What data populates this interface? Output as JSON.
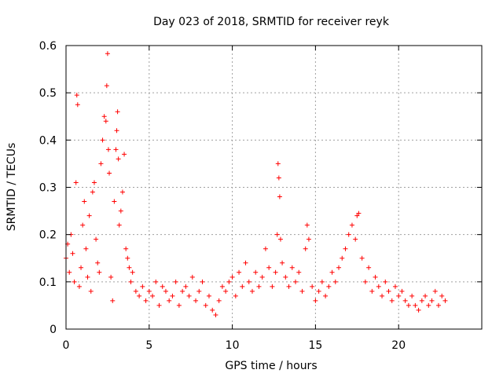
{
  "chart_data": {
    "type": "scatter",
    "title": "Day 023 of 2018, SRMTID for receiver reyk",
    "xlabel": "GPS time / hours",
    "ylabel": "SRMTID / TECUs",
    "xlim": [
      0,
      25
    ],
    "ylim": [
      0,
      0.6
    ],
    "xticks": [
      0,
      5,
      10,
      15,
      20
    ],
    "xtick_labels": [
      "0",
      "5",
      "10",
      "15",
      "20"
    ],
    "yticks": [
      0,
      0.1,
      0.2,
      0.3,
      0.4,
      0.5,
      0.6
    ],
    "ytick_labels": [
      "0",
      "0.1",
      "0.2",
      "0.3",
      "0.4",
      "0.5",
      "0.6"
    ],
    "grid": true,
    "marker": "+",
    "color": "#ff0000",
    "series": [
      {
        "name": "SRMTID",
        "x": [
          0.0,
          0.1,
          0.2,
          0.3,
          0.4,
          0.5,
          0.6,
          0.65,
          0.7,
          0.8,
          0.9,
          1.0,
          1.1,
          1.2,
          1.3,
          1.4,
          1.5,
          1.6,
          1.7,
          1.8,
          1.9,
          2.0,
          2.1,
          2.2,
          2.3,
          2.4,
          2.45,
          2.5,
          2.55,
          2.6,
          2.7,
          2.8,
          2.9,
          3.0,
          3.05,
          3.1,
          3.15,
          3.2,
          3.3,
          3.4,
          3.5,
          3.6,
          3.7,
          3.8,
          3.9,
          4.0,
          4.2,
          4.4,
          4.6,
          4.8,
          5.0,
          5.2,
          5.4,
          5.6,
          5.8,
          6.0,
          6.2,
          6.4,
          6.6,
          6.8,
          7.0,
          7.2,
          7.4,
          7.6,
          7.8,
          8.0,
          8.2,
          8.4,
          8.6,
          8.8,
          9.0,
          9.2,
          9.4,
          9.6,
          9.8,
          10.0,
          10.2,
          10.4,
          10.6,
          10.8,
          11.0,
          11.2,
          11.4,
          11.6,
          11.8,
          12.0,
          12.2,
          12.4,
          12.6,
          12.7,
          12.75,
          12.8,
          12.85,
          12.9,
          13.0,
          13.2,
          13.4,
          13.6,
          13.8,
          14.0,
          14.2,
          14.4,
          14.5,
          14.6,
          14.8,
          15.0,
          15.2,
          15.4,
          15.6,
          15.8,
          16.0,
          16.2,
          16.4,
          16.6,
          16.8,
          17.0,
          17.2,
          17.4,
          17.5,
          17.6,
          17.8,
          18.0,
          18.2,
          18.4,
          18.6,
          18.8,
          19.0,
          19.2,
          19.4,
          19.6,
          19.8,
          20.0,
          20.2,
          20.4,
          20.6,
          20.8,
          21.0,
          21.2,
          21.4,
          21.6,
          21.8,
          22.0,
          22.2,
          22.4,
          22.6,
          22.8
        ],
        "y": [
          0.15,
          0.18,
          0.12,
          0.2,
          0.16,
          0.1,
          0.31,
          0.495,
          0.475,
          0.09,
          0.13,
          0.22,
          0.27,
          0.17,
          0.11,
          0.24,
          0.08,
          0.29,
          0.31,
          0.19,
          0.14,
          0.12,
          0.35,
          0.4,
          0.45,
          0.44,
          0.515,
          0.583,
          0.38,
          0.33,
          0.11,
          0.06,
          0.27,
          0.38,
          0.42,
          0.46,
          0.36,
          0.22,
          0.25,
          0.29,
          0.37,
          0.17,
          0.15,
          0.13,
          0.1,
          0.12,
          0.08,
          0.07,
          0.09,
          0.06,
          0.08,
          0.07,
          0.1,
          0.05,
          0.09,
          0.08,
          0.06,
          0.07,
          0.1,
          0.05,
          0.08,
          0.09,
          0.07,
          0.11,
          0.06,
          0.08,
          0.1,
          0.05,
          0.07,
          0.04,
          0.03,
          0.06,
          0.09,
          0.08,
          0.1,
          0.11,
          0.07,
          0.12,
          0.09,
          0.14,
          0.1,
          0.08,
          0.12,
          0.09,
          0.11,
          0.17,
          0.13,
          0.09,
          0.12,
          0.2,
          0.35,
          0.32,
          0.28,
          0.19,
          0.14,
          0.11,
          0.09,
          0.13,
          0.1,
          0.12,
          0.08,
          0.17,
          0.22,
          0.19,
          0.09,
          0.06,
          0.08,
          0.1,
          0.07,
          0.09,
          0.12,
          0.1,
          0.13,
          0.15,
          0.17,
          0.2,
          0.22,
          0.19,
          0.24,
          0.245,
          0.15,
          0.1,
          0.13,
          0.08,
          0.11,
          0.09,
          0.07,
          0.1,
          0.08,
          0.06,
          0.09,
          0.07,
          0.08,
          0.06,
          0.05,
          0.07,
          0.05,
          0.04,
          0.06,
          0.07,
          0.05,
          0.06,
          0.08,
          0.05,
          0.07,
          0.06
        ]
      }
    ]
  }
}
